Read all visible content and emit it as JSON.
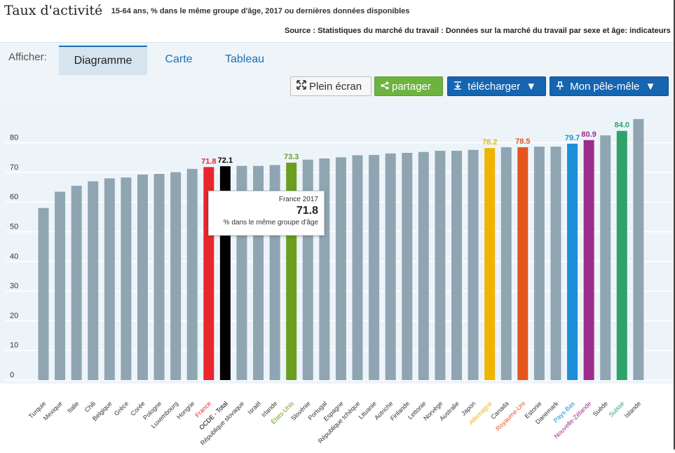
{
  "header": {
    "title": "Taux d'activité",
    "subtitle": "15-64 ans, % dans le même groupe d'âge, 2017 ou dernières données disponibles",
    "source": "Source : Statistiques du marché du travail : Données sur la marché du travail par sexe et âge: indicateurs"
  },
  "toolbar": {
    "afficher_label": "Afficher:",
    "tabs": [
      {
        "label": "Diagramme",
        "active": true
      },
      {
        "label": "Carte",
        "active": false
      },
      {
        "label": "Tableau",
        "active": false
      }
    ],
    "fullscreen_label": "Plein écran",
    "share_label": "partager",
    "download_label": "télécharger",
    "pin_label": "Mon pêle-mêle",
    "colors": {
      "share": "#6db33f",
      "primary": "#1565b0"
    }
  },
  "tooltip": {
    "title": "France 2017",
    "value": "71.8",
    "unit": "% dans le même groupe d'âge"
  },
  "chart_data": {
    "type": "bar",
    "title": "",
    "xlabel": "",
    "ylabel": "",
    "ylim": [
      0,
      90
    ],
    "yticks": [
      0,
      10,
      20,
      30,
      40,
      50,
      60,
      70,
      80
    ],
    "grid": true,
    "categories": [
      "Turquie",
      "Mexique",
      "Italie",
      "Chili",
      "Belgique",
      "Grèce",
      "Corée",
      "Pologne",
      "Luxembourg",
      "Hongrie",
      "France",
      "OCDE - Total",
      "République slovaque",
      "Israël",
      "Irlande",
      "États-Unis",
      "Slovénie",
      "Portugal",
      "Espagne",
      "République tchèque",
      "Lituanie",
      "Autriche",
      "Finlande",
      "Lettonie",
      "Norvège",
      "Australie",
      "Japon",
      "Allemagne",
      "Canada",
      "Royaume-Uni",
      "Estonie",
      "Danemark",
      "Pays-Bas",
      "Nouvelle-Zélande",
      "Suède",
      "Suisse",
      "Islande"
    ],
    "values": [
      58.0,
      63.5,
      65.5,
      67.0,
      68.0,
      68.3,
      69.3,
      69.5,
      70.1,
      71.2,
      71.8,
      72.1,
      72.2,
      72.2,
      72.5,
      73.3,
      74.3,
      74.7,
      75.1,
      75.8,
      75.9,
      76.4,
      76.6,
      76.9,
      77.3,
      77.3,
      77.6,
      78.2,
      78.5,
      78.5,
      78.7,
      78.7,
      79.7,
      80.9,
      82.5,
      84.0,
      88.0
    ],
    "value_labels": [
      "",
      "",
      "",
      "",
      "",
      "",
      "",
      "",
      "",
      "",
      "71.8",
      "72.1",
      "",
      "",
      "",
      "73.3",
      "",
      "",
      "",
      "",
      "",
      "",
      "",
      "",
      "",
      "",
      "",
      "78.2",
      "",
      "78.5",
      "",
      "",
      "79.7",
      "80.9",
      "",
      "84.0",
      ""
    ],
    "bar_colors": [
      "#8fa5b2",
      "#8fa5b2",
      "#8fa5b2",
      "#8fa5b2",
      "#8fa5b2",
      "#8fa5b2",
      "#8fa5b2",
      "#8fa5b2",
      "#8fa5b2",
      "#8fa5b2",
      "#e8262b",
      "#000000",
      "#8fa5b2",
      "#8fa5b2",
      "#8fa5b2",
      "#6b9e1f",
      "#8fa5b2",
      "#8fa5b2",
      "#8fa5b2",
      "#8fa5b2",
      "#8fa5b2",
      "#8fa5b2",
      "#8fa5b2",
      "#8fa5b2",
      "#8fa5b2",
      "#8fa5b2",
      "#8fa5b2",
      "#f0b400",
      "#8fa5b2",
      "#e4561d",
      "#8fa5b2",
      "#8fa5b2",
      "#1d8ed8",
      "#9b2d8e",
      "#8fa5b2",
      "#2fa36b",
      "#8fa5b2"
    ],
    "label_colors": [
      "#333333",
      "#333333",
      "#333333",
      "#333333",
      "#333333",
      "#333333",
      "#333333",
      "#333333",
      "#333333",
      "#333333",
      "#e8262b",
      "#000000",
      "#333333",
      "#333333",
      "#333333",
      "#6b9e1f",
      "#333333",
      "#333333",
      "#333333",
      "#333333",
      "#333333",
      "#333333",
      "#333333",
      "#333333",
      "#333333",
      "#333333",
      "#333333",
      "#f0b400",
      "#333333",
      "#e4561d",
      "#333333",
      "#333333",
      "#1d8ed8",
      "#9b2d8e",
      "#333333",
      "#2fa36b",
      "#333333"
    ],
    "background": "#edf4f9",
    "grid_color": "#ffffff"
  }
}
